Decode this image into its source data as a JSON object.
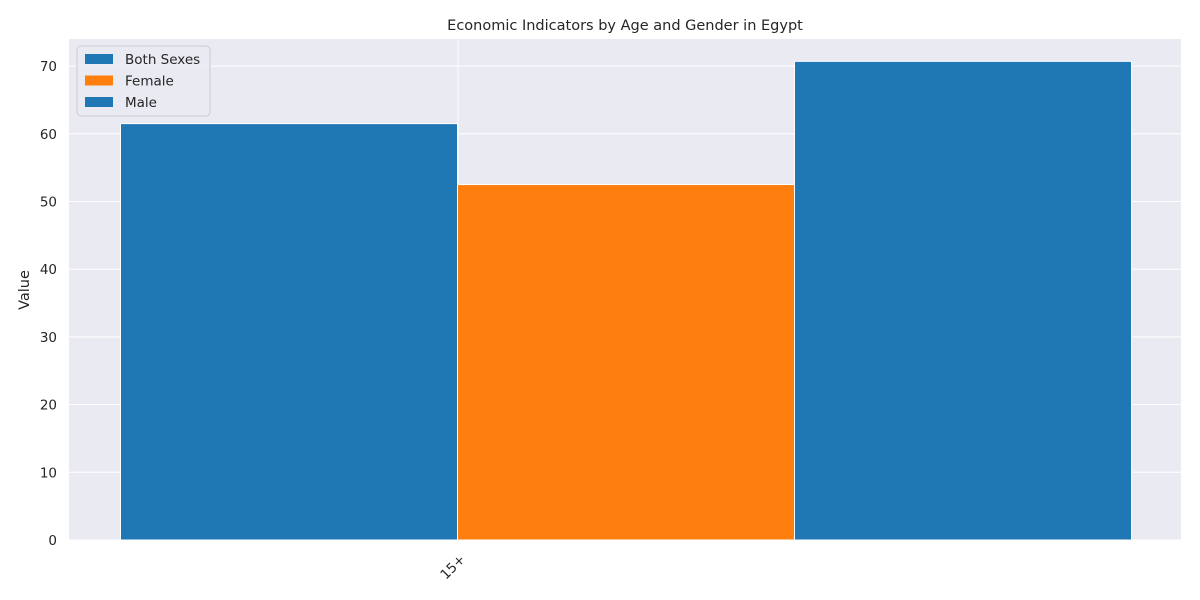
{
  "chart_data": {
    "type": "bar",
    "title": "Economic Indicators by Age and Gender in Egypt",
    "xlabel": "",
    "ylabel": "Value",
    "categories": [
      "15+"
    ],
    "ylim": [
      0,
      74
    ],
    "yticks": [
      0,
      10,
      20,
      30,
      40,
      50,
      60,
      70
    ],
    "grid": true,
    "legend_position": "top-left",
    "series": [
      {
        "name": "Both Sexes",
        "values": [
          61.5
        ],
        "color": "#1f77b4"
      },
      {
        "name": "Female",
        "values": [
          52.5
        ],
        "color": "#ff7f0e"
      },
      {
        "name": "Male",
        "values": [
          70.7
        ],
        "color": "#1f77b4"
      }
    ]
  }
}
